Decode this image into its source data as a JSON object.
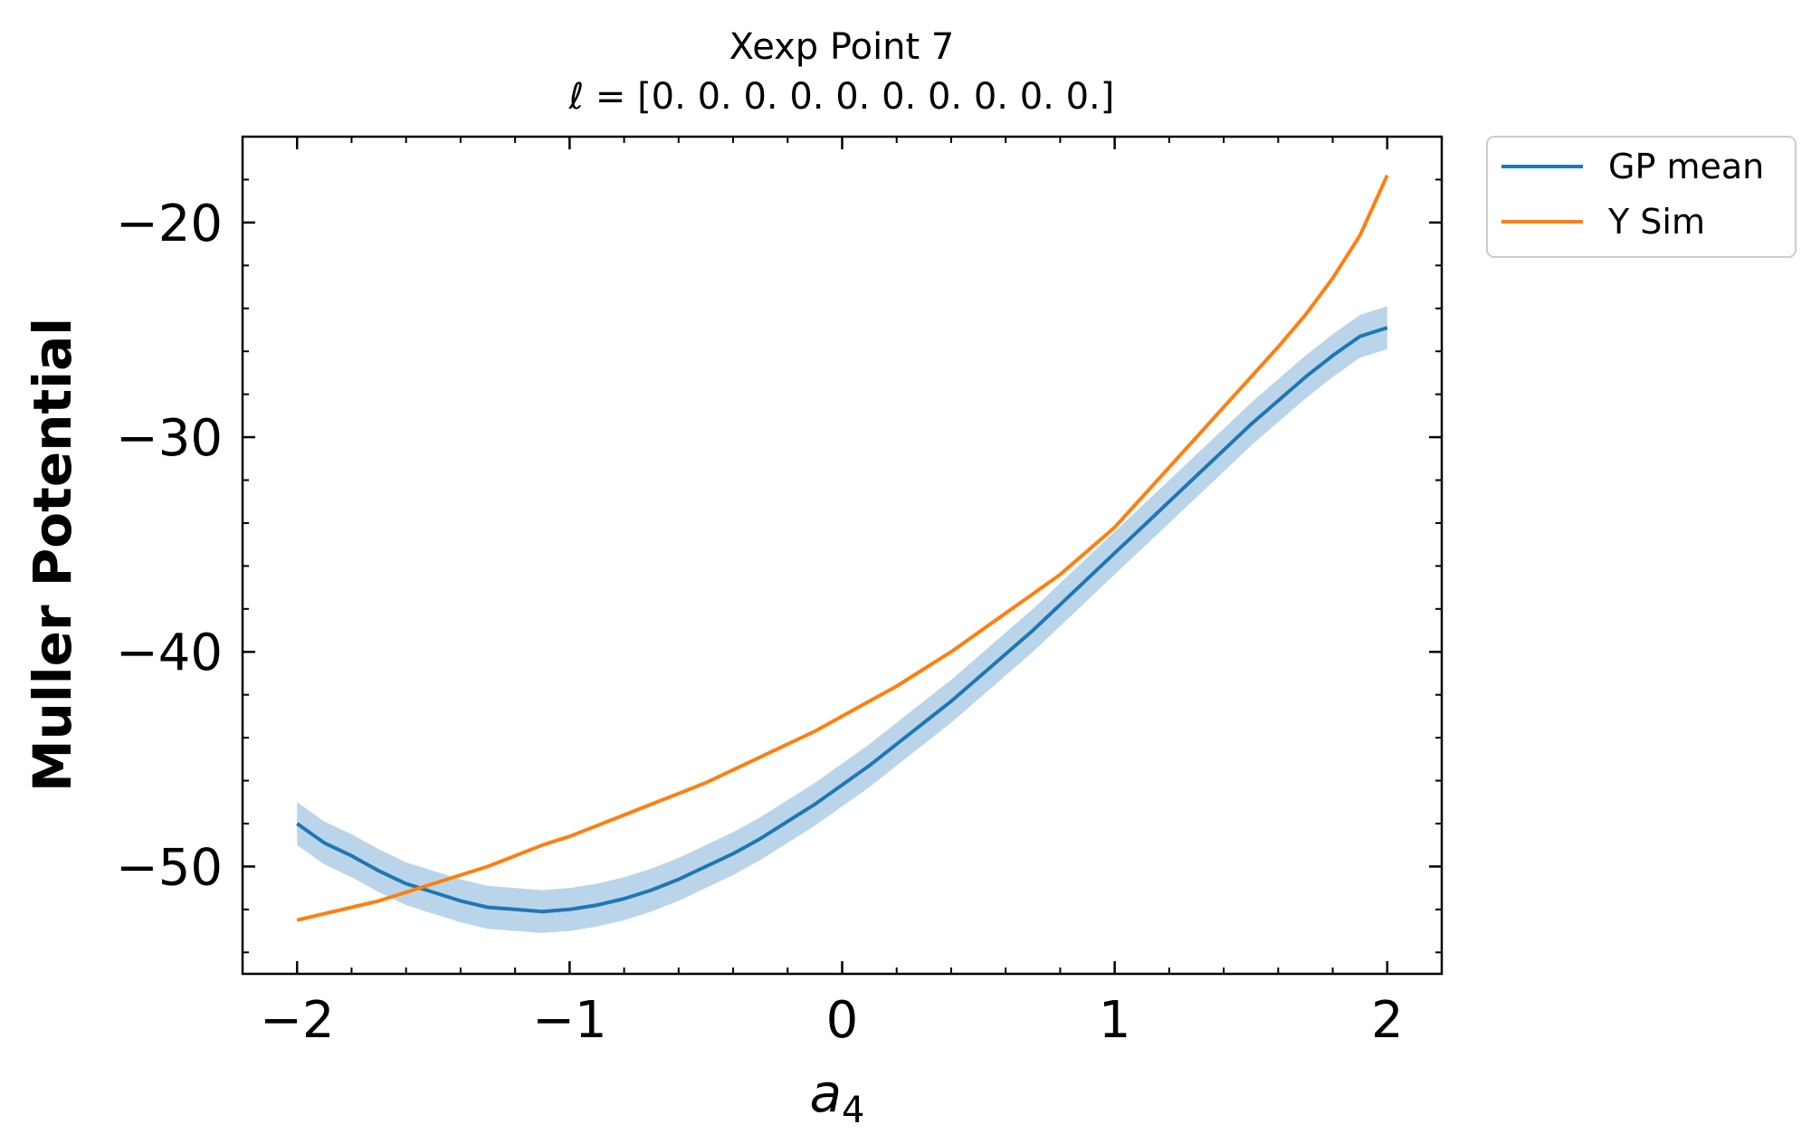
{
  "chart_data": {
    "type": "line",
    "title": "Xexp Point 7",
    "subtitle": "ℓ = [0. 0. 0. 0. 0. 0. 0. 0. 0. 0.]",
    "xlabel": "a",
    "xlabel_subscript": "4",
    "ylabel": "Muller Potential",
    "xlim": [
      -2.2,
      2.2
    ],
    "ylim": [
      -55,
      -16
    ],
    "xticks": [
      -2,
      -1,
      0,
      1,
      2
    ],
    "xtick_labels": [
      "−2",
      "−1",
      "0",
      "1",
      "2"
    ],
    "yticks": [
      -50,
      -40,
      -30,
      -20
    ],
    "ytick_labels": [
      "−50",
      "−40",
      "−30",
      "−20"
    ],
    "grid": false,
    "legend_position": "outside-top-right",
    "colors": {
      "gp_mean": "#1f77b4",
      "band": "#bad5ea",
      "y_sim": "#ff7f0e"
    },
    "series": [
      {
        "name": "GP mean",
        "x": [
          -2.0,
          -1.9,
          -1.8,
          -1.7,
          -1.6,
          -1.5,
          -1.4,
          -1.3,
          -1.2,
          -1.1,
          -1.0,
          -0.9,
          -0.8,
          -0.7,
          -0.6,
          -0.5,
          -0.4,
          -0.3,
          -0.2,
          -0.1,
          0.0,
          0.1,
          0.2,
          0.3,
          0.4,
          0.5,
          0.6,
          0.7,
          0.8,
          0.9,
          1.0,
          1.1,
          1.2,
          1.3,
          1.4,
          1.5,
          1.6,
          1.7,
          1.8,
          1.9,
          2.0
        ],
        "y": [
          -48.0,
          -48.9,
          -49.5,
          -50.2,
          -50.8,
          -51.2,
          -51.6,
          -51.9,
          -52.0,
          -52.1,
          -52.0,
          -51.8,
          -51.5,
          -51.1,
          -50.6,
          -50.0,
          -49.4,
          -48.7,
          -47.9,
          -47.1,
          -46.2,
          -45.3,
          -44.3,
          -43.3,
          -42.3,
          -41.2,
          -40.1,
          -39.0,
          -37.8,
          -36.6,
          -35.4,
          -34.2,
          -33.0,
          -31.8,
          -30.6,
          -29.4,
          -28.3,
          -27.2,
          -26.2,
          -25.3,
          -24.9
        ],
        "band_half_width": 1.0
      },
      {
        "name": "Y Sim",
        "x": [
          -2.0,
          -1.9,
          -1.8,
          -1.7,
          -1.6,
          -1.5,
          -1.4,
          -1.3,
          -1.2,
          -1.1,
          -1.0,
          -0.9,
          -0.8,
          -0.7,
          -0.6,
          -0.5,
          -0.4,
          -0.3,
          -0.2,
          -0.1,
          0.0,
          0.1,
          0.2,
          0.3,
          0.4,
          0.5,
          0.6,
          0.7,
          0.8,
          0.9,
          1.0,
          1.1,
          1.2,
          1.3,
          1.4,
          1.5,
          1.6,
          1.7,
          1.8,
          1.9,
          2.0
        ],
        "y": [
          -52.5,
          -52.2,
          -51.9,
          -51.6,
          -51.2,
          -50.8,
          -50.4,
          -50.0,
          -49.5,
          -49.0,
          -48.6,
          -48.1,
          -47.6,
          -47.1,
          -46.6,
          -46.1,
          -45.5,
          -44.9,
          -44.3,
          -43.7,
          -43.0,
          -42.3,
          -41.6,
          -40.8,
          -40.0,
          -39.1,
          -38.2,
          -37.3,
          -36.4,
          -35.3,
          -34.2,
          -32.8,
          -31.4,
          -30.0,
          -28.6,
          -27.2,
          -25.8,
          -24.3,
          -22.6,
          -20.6,
          -17.8
        ]
      }
    ]
  }
}
